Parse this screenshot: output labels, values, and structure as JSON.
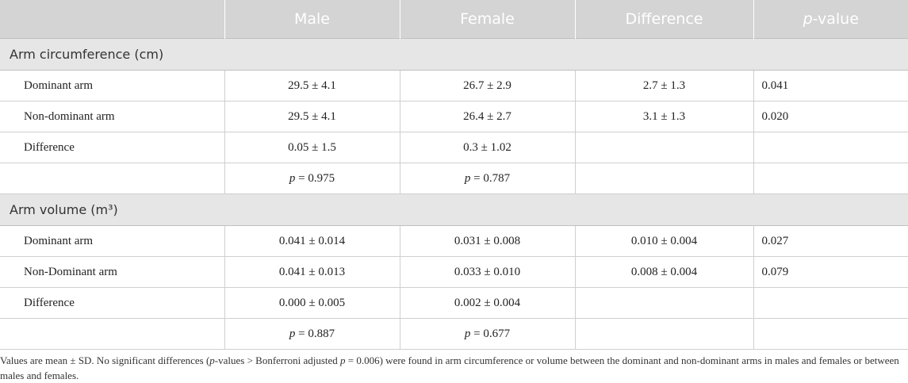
{
  "header": {
    "col0": "",
    "male": "Male",
    "female": "Female",
    "difference": "Difference",
    "p_italic": "p",
    "p_rest": "-value"
  },
  "sections": [
    {
      "title": "Arm circumference (cm)",
      "rows": [
        {
          "label": "Dominant arm",
          "male": "29.5 ± 4.1",
          "female": "26.7 ± 2.9",
          "difference": "2.7 ± 1.3",
          "p": "0.041"
        },
        {
          "label": "Non-dominant arm",
          "male": "29.5 ± 4.1",
          "female": "26.4 ± 2.7",
          "difference": "3.1 ± 1.3",
          "p": "0.020"
        },
        {
          "label": "Difference",
          "male": "0.05 ± 1.5",
          "female": "0.3 ± 1.02",
          "difference": "",
          "p": ""
        }
      ],
      "pvals": {
        "male": "= 0.975",
        "female": "= 0.787"
      }
    },
    {
      "title": "Arm volume (m³)",
      "rows": [
        {
          "label": "Dominant arm",
          "male": "0.041 ± 0.014",
          "female": "0.031 ± 0.008",
          "difference": "0.010 ± 0.004",
          "p": "0.027"
        },
        {
          "label": "Non-Dominant arm",
          "male": "0.041 ± 0.013",
          "female": "0.033 ± 0.010",
          "difference": "0.008 ± 0.004",
          "p": "0.079"
        },
        {
          "label": "Difference",
          "male": "0.000 ± 0.005",
          "female": "0.002 ± 0.004",
          "difference": "",
          "p": ""
        }
      ],
      "pvals": {
        "male": "= 0.887",
        "female": "= 0.677"
      }
    }
  ],
  "p_symbol": "p",
  "footnote": {
    "part1": "Values are mean ± SD. No significant differences (",
    "p1": "p",
    "part2": "-values > Bonferroni adjusted ",
    "p2": "p",
    "part3": " = 0.006) were found in arm circumference or volume between the dominant and non-dominant arms in males and females or between males and females."
  }
}
